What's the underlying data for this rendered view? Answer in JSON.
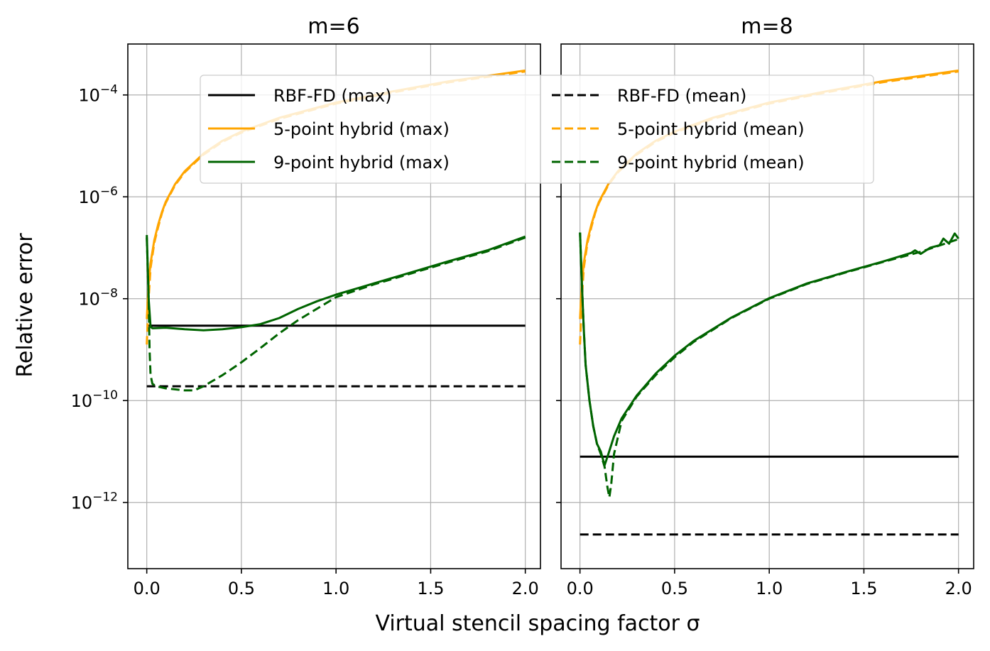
{
  "chart_data": {
    "type": "line",
    "xlabel": "Virtual stencil spacing factor σ",
    "ylabel": "Relative error",
    "yscale": "log",
    "xlim": [
      -0.1,
      2.08
    ],
    "ylim_log10": [
      -13.3,
      -3.0
    ],
    "x_ticks": [
      0.0,
      0.5,
      1.0,
      1.5,
      2.0
    ],
    "x_tick_labels": [
      "0.0",
      "0.5",
      "1.0",
      "1.5",
      "2.0"
    ],
    "y_ticks_log10": [
      -12,
      -10,
      -8,
      -6,
      -4
    ],
    "y_tick_labels": [
      {
        "base": "10",
        "exp": "−12"
      },
      {
        "base": "10",
        "exp": "−10"
      },
      {
        "base": "10",
        "exp": "−8"
      },
      {
        "base": "10",
        "exp": "−6"
      },
      {
        "base": "10",
        "exp": "−4"
      }
    ],
    "grid": true,
    "legend": {
      "location": "upper center",
      "ncol": 2,
      "entries": [
        {
          "label": "RBF-FD (max)",
          "color": "#000000",
          "style": "solid"
        },
        {
          "label": "RBF-FD (mean)",
          "color": "#000000",
          "style": "dashed"
        },
        {
          "label": "5-point hybrid (max)",
          "color": "#ffa500",
          "style": "solid"
        },
        {
          "label": "5-point hybrid (mean)",
          "color": "#ffa500",
          "style": "dashed"
        },
        {
          "label": "9-point hybrid (max)",
          "color": "#006400",
          "style": "solid"
        },
        {
          "label": "9-point hybrid (mean)",
          "color": "#006400",
          "style": "dashed"
        }
      ]
    },
    "panels": [
      {
        "title": "m=6",
        "show_y_tick_labels": true,
        "series": [
          {
            "name": "RBF-FD (max)",
            "color": "#000000",
            "style": "solid",
            "x": [
              0.0,
              2.0
            ],
            "log10_y": [
              -8.53,
              -8.53
            ]
          },
          {
            "name": "RBF-FD (mean)",
            "color": "#000000",
            "style": "dashed",
            "x": [
              0.0,
              2.0
            ],
            "log10_y": [
              -9.72,
              -9.72
            ]
          },
          {
            "name": "5-point hybrid (max)",
            "color": "#ffa500",
            "style": "solid",
            "x": [
              0.0,
              0.01,
              0.02,
              0.04,
              0.06,
              0.08,
              0.1,
              0.15,
              0.2,
              0.3,
              0.4,
              0.5,
              0.7,
              1.0,
              1.3,
              1.6,
              2.0
            ],
            "log10_y": [
              -8.4,
              -7.7,
              -7.3,
              -6.85,
              -6.55,
              -6.3,
              -6.1,
              -5.75,
              -5.5,
              -5.15,
              -4.9,
              -4.72,
              -4.45,
              -4.15,
              -3.93,
              -3.73,
              -3.52
            ]
          },
          {
            "name": "5-point hybrid (mean)",
            "color": "#ffa500",
            "style": "dashed",
            "x": [
              0.0,
              0.01,
              0.02,
              0.04,
              0.06,
              0.08,
              0.1,
              0.15,
              0.2,
              0.3,
              0.4,
              0.5,
              0.7,
              1.0,
              1.3,
              1.6,
              2.0
            ],
            "log10_y": [
              -8.9,
              -8.0,
              -7.4,
              -6.9,
              -6.6,
              -6.32,
              -6.12,
              -5.77,
              -5.52,
              -5.17,
              -4.92,
              -4.74,
              -4.47,
              -4.17,
              -3.95,
              -3.75,
              -3.54
            ]
          },
          {
            "name": "9-point hybrid (max)",
            "color": "#006400",
            "style": "solid",
            "x": [
              0.0,
              0.01,
              0.02,
              0.03,
              0.1,
              0.2,
              0.3,
              0.4,
              0.5,
              0.6,
              0.7,
              0.8,
              0.9,
              1.0,
              1.2,
              1.4,
              1.6,
              1.8,
              2.0
            ],
            "log10_y": [
              -6.75,
              -8.0,
              -8.55,
              -8.58,
              -8.57,
              -8.6,
              -8.62,
              -8.6,
              -8.56,
              -8.5,
              -8.38,
              -8.2,
              -8.05,
              -7.92,
              -7.7,
              -7.48,
              -7.26,
              -7.05,
              -6.78
            ]
          },
          {
            "name": "9-point hybrid (mean)",
            "color": "#006400",
            "style": "dashed",
            "x": [
              0.0,
              0.01,
              0.015,
              0.02,
              0.03,
              0.05,
              0.1,
              0.2,
              0.25,
              0.3,
              0.4,
              0.5,
              0.6,
              0.7,
              0.8,
              1.0,
              1.2,
              1.4,
              1.6,
              1.8,
              2.0
            ],
            "log10_y": [
              -6.8,
              -8.0,
              -9.0,
              -9.5,
              -9.67,
              -9.72,
              -9.76,
              -9.8,
              -9.8,
              -9.72,
              -9.5,
              -9.25,
              -8.97,
              -8.68,
              -8.42,
              -7.97,
              -7.72,
              -7.5,
              -7.28,
              -7.07,
              -6.8
            ]
          }
        ]
      },
      {
        "title": "m=8",
        "show_y_tick_labels": false,
        "series": [
          {
            "name": "RBF-FD (max)",
            "color": "#000000",
            "style": "solid",
            "x": [
              0.0,
              2.0
            ],
            "log10_y": [
              -11.1,
              -11.1
            ]
          },
          {
            "name": "RBF-FD (mean)",
            "color": "#000000",
            "style": "dashed",
            "x": [
              0.0,
              2.0
            ],
            "log10_y": [
              -12.63,
              -12.63
            ]
          },
          {
            "name": "5-point hybrid (max)",
            "color": "#ffa500",
            "style": "solid",
            "x": [
              0.0,
              0.01,
              0.02,
              0.04,
              0.06,
              0.08,
              0.1,
              0.15,
              0.2,
              0.3,
              0.4,
              0.5,
              0.7,
              1.0,
              1.3,
              1.6,
              2.0
            ],
            "log10_y": [
              -8.4,
              -7.7,
              -7.3,
              -6.85,
              -6.55,
              -6.3,
              -6.1,
              -5.75,
              -5.5,
              -5.15,
              -4.9,
              -4.72,
              -4.45,
              -4.15,
              -3.93,
              -3.73,
              -3.52
            ]
          },
          {
            "name": "5-point hybrid (mean)",
            "color": "#ffa500",
            "style": "dashed",
            "x": [
              0.0,
              0.01,
              0.02,
              0.04,
              0.06,
              0.08,
              0.1,
              0.15,
              0.2,
              0.3,
              0.4,
              0.5,
              0.7,
              1.0,
              1.3,
              1.6,
              2.0
            ],
            "log10_y": [
              -8.9,
              -8.0,
              -7.4,
              -6.9,
              -6.6,
              -6.32,
              -6.12,
              -5.77,
              -5.52,
              -5.17,
              -4.92,
              -4.74,
              -4.47,
              -4.17,
              -3.95,
              -3.75,
              -3.54
            ]
          },
          {
            "name": "9-point hybrid (max)",
            "color": "#006400",
            "style": "solid",
            "x": [
              0.0,
              0.01,
              0.02,
              0.03,
              0.05,
              0.07,
              0.09,
              0.11,
              0.13,
              0.15,
              0.18,
              0.22,
              0.3,
              0.4,
              0.5,
              0.6,
              0.8,
              1.0,
              1.2,
              1.4,
              1.6,
              1.75,
              1.77,
              1.8,
              1.85,
              1.9,
              1.92,
              1.95,
              1.98,
              2.0
            ],
            "log10_y": [
              -6.7,
              -7.7,
              -8.6,
              -9.3,
              -10.0,
              -10.5,
              -10.85,
              -11.0,
              -11.27,
              -11.05,
              -10.7,
              -10.35,
              -9.9,
              -9.47,
              -9.12,
              -8.83,
              -8.37,
              -7.99,
              -7.7,
              -7.48,
              -7.27,
              -7.1,
              -7.05,
              -7.12,
              -7.0,
              -6.95,
              -6.82,
              -6.92,
              -6.72,
              -6.82
            ]
          },
          {
            "name": "9-point hybrid (mean)",
            "color": "#006400",
            "style": "dashed",
            "x": [
              0.0,
              0.01,
              0.02,
              0.03,
              0.05,
              0.07,
              0.09,
              0.11,
              0.13,
              0.145,
              0.155,
              0.165,
              0.18,
              0.22,
              0.3,
              0.4,
              0.5,
              0.6,
              0.8,
              1.0,
              1.2,
              1.4,
              1.6,
              1.8,
              2.0
            ],
            "log10_y": [
              -6.7,
              -7.7,
              -8.6,
              -9.3,
              -10.0,
              -10.5,
              -10.85,
              -11.05,
              -11.3,
              -11.7,
              -11.9,
              -11.65,
              -11.05,
              -10.4,
              -9.92,
              -9.5,
              -9.15,
              -8.85,
              -8.38,
              -8.0,
              -7.71,
              -7.49,
              -7.28,
              -7.08,
              -6.83
            ]
          }
        ]
      }
    ]
  }
}
